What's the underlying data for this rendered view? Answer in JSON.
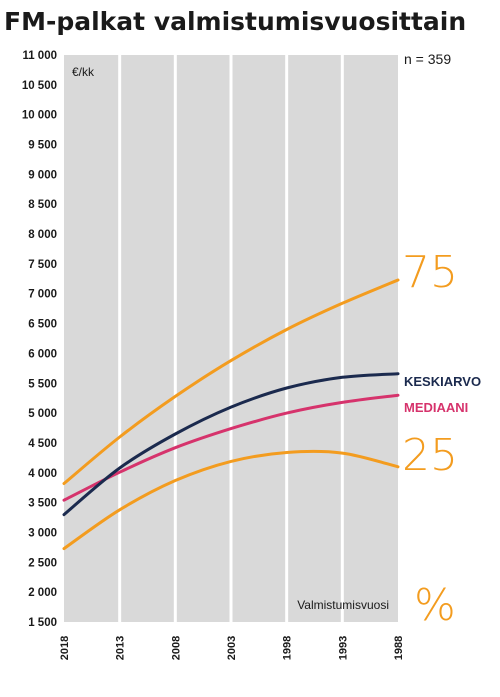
{
  "chart_data": {
    "type": "line",
    "title": "FM-palkat valmistumisvuosittain",
    "ylabel": "€/kk",
    "xlabel": "Valmistumisvuosi",
    "note": "n = 359",
    "ylim": [
      1500,
      11000
    ],
    "yticks": [
      "1 500",
      "2 000",
      "2 500",
      "3 000",
      "3 500",
      "4 000",
      "4 500",
      "5 000",
      "5 500",
      "6 000",
      "6 500",
      "7 000",
      "7 500",
      "8 000",
      "8 500",
      "9 000",
      "9 500",
      "10 000",
      "10 500",
      "11 000"
    ],
    "ytick_values": [
      1500,
      2000,
      2500,
      3000,
      3500,
      4000,
      4500,
      5000,
      5500,
      6000,
      6500,
      7000,
      7500,
      8000,
      8500,
      9000,
      9500,
      10000,
      10500,
      11000
    ],
    "xlim": [
      2018,
      1988
    ],
    "xticks": [
      "2018",
      "2013",
      "2008",
      "2003",
      "1998",
      "1993",
      "1988"
    ],
    "xtick_values": [
      2018,
      2013,
      2008,
      2003,
      1998,
      1993,
      1988
    ],
    "x": [
      2018,
      2013,
      2008,
      2003,
      1998,
      1993,
      1988
    ],
    "series": [
      {
        "name": "75",
        "color": "#f39c1f",
        "values": [
          3820,
          4600,
          5280,
          5880,
          6400,
          6840,
          7230
        ]
      },
      {
        "name": "KESKIARVO",
        "color": "#1b2a4e",
        "values": [
          3300,
          4080,
          4650,
          5100,
          5420,
          5600,
          5660
        ]
      },
      {
        "name": "MEDIAANI",
        "color": "#d6336c",
        "values": [
          3540,
          4010,
          4420,
          4740,
          5000,
          5180,
          5300
        ]
      },
      {
        "name": "25",
        "color": "#f39c1f",
        "values": [
          2730,
          3380,
          3870,
          4190,
          4340,
          4330,
          4100
        ]
      }
    ],
    "percent_label": "%",
    "grid": true
  }
}
